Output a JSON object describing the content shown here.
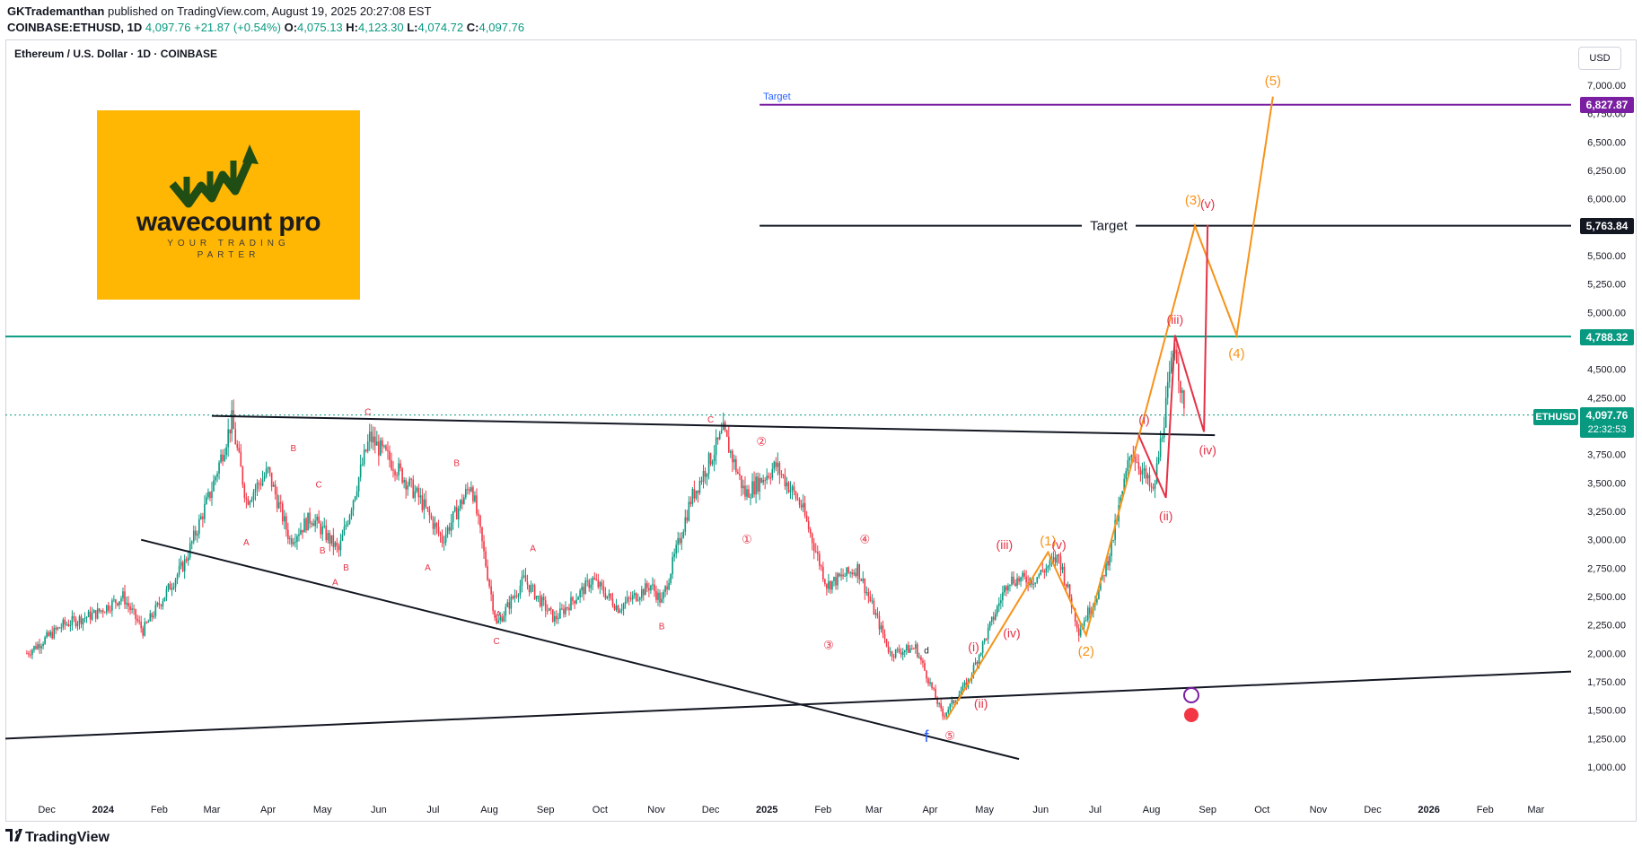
{
  "header": {
    "publisher": "GKTrademanthan",
    "published_text": "published on TradingView.com, August 19, 2025 20:27:08 EST",
    "symbol": "COINBASE:ETHUSD, 1D",
    "last": "4,097.76",
    "change": "+21.87 (+0.54%)",
    "open_label": "O:",
    "open": "4,075.13",
    "high_label": "H:",
    "high": "4,123.30",
    "low_label": "L:",
    "low": "4,074.72",
    "close_label": "C:",
    "close": "4,097.76"
  },
  "chart_title": "Ethereum / U.S. Dollar · 1D · COINBASE",
  "currency_button": "USD",
  "logo": {
    "brand": "wavecount pro",
    "tagline_1": "YOUR TRADING",
    "tagline_2": "PARTER",
    "color": "#ffb703"
  },
  "price_labels": {
    "target_upper": "6,827.87",
    "target_lower": "5,763.84",
    "resistance": "4,788.32",
    "symbol_tag": "ETHUSD",
    "last_price": "4,097.76",
    "countdown": "22:32:53"
  },
  "footer_brand": "TradingView",
  "colors": {
    "up": "#089981",
    "down": "#f23645",
    "wave_orange": "#f7931a",
    "wave_red": "#e53146",
    "target_purple": "#7b1fa2",
    "horizontal_teal": "#089981",
    "trendline": "#131722",
    "label_blue": "#2962ff"
  },
  "chart_data": {
    "type": "candlestick",
    "title": "Ethereum / U.S. Dollar · 1D · COINBASE",
    "y_axis": {
      "scale": "linear",
      "ticks": [
        "1,000.00",
        "1,250.00",
        "1,500.00",
        "1,750.00",
        "2,000.00",
        "2,250.00",
        "2,500.00",
        "2,750.00",
        "3,000.00",
        "3,250.00",
        "3,500.00",
        "3,750.00",
        "4,250.00",
        "4,500.00",
        "5,000.00",
        "5,250.00",
        "5,500.00",
        "6,000.00",
        "6,250.00",
        "6,500.00",
        "6,750.00",
        "7,000.00"
      ],
      "range": [
        850,
        7450
      ]
    },
    "x_axis": {
      "ticks": [
        "Dec",
        "2024",
        "Feb",
        "Mar",
        "Apr",
        "May",
        "Jun",
        "Jul",
        "Aug",
        "Sep",
        "Oct",
        "Nov",
        "Dec",
        "2025",
        "Feb",
        "Mar",
        "Apr",
        "May",
        "Jun",
        "Jul",
        "Aug",
        "Sep",
        "Oct",
        "Nov",
        "Dec",
        "2026",
        "Feb",
        "Mar"
      ]
    },
    "anchors": [
      [
        "2023-11-20",
        2000
      ],
      [
        "2023-12-10",
        2250
      ],
      [
        "2023-12-28",
        2350
      ],
      [
        "2024-01-12",
        2500
      ],
      [
        "2024-01-23",
        2200
      ],
      [
        "2024-02-15",
        2800
      ],
      [
        "2024-03-01",
        3450
      ],
      [
        "2024-03-12",
        4050
      ],
      [
        "2024-03-20",
        3350
      ],
      [
        "2024-04-01",
        3600
      ],
      [
        "2024-04-13",
        3000
      ],
      [
        "2024-04-25",
        3200
      ],
      [
        "2024-05-10",
        2900
      ],
      [
        "2024-05-27",
        3900
      ],
      [
        "2024-06-10",
        3650
      ],
      [
        "2024-06-24",
        3350
      ],
      [
        "2024-07-06",
        3000
      ],
      [
        "2024-07-22",
        3500
      ],
      [
        "2024-08-05",
        2250
      ],
      [
        "2024-08-20",
        2650
      ],
      [
        "2024-09-06",
        2300
      ],
      [
        "2024-09-27",
        2650
      ],
      [
        "2024-10-11",
        2400
      ],
      [
        "2024-10-29",
        2600
      ],
      [
        "2024-11-04",
        2450
      ],
      [
        "2024-11-20",
        3350
      ],
      [
        "2024-12-08",
        3950
      ],
      [
        "2024-12-20",
        3400
      ],
      [
        "2025-01-06",
        3650
      ],
      [
        "2025-01-20",
        3300
      ],
      [
        "2025-02-03",
        2600
      ],
      [
        "2025-02-20",
        2750
      ],
      [
        "2025-03-10",
        2000
      ],
      [
        "2025-03-24",
        2050
      ],
      [
        "2025-04-08",
        1450
      ],
      [
        "2025-04-22",
        1750
      ],
      [
        "2025-05-08",
        2400
      ],
      [
        "2025-05-14",
        2650
      ],
      [
        "2025-05-28",
        2650
      ],
      [
        "2025-06-11",
        2850
      ],
      [
        "2025-06-22",
        2200
      ],
      [
        "2025-07-03",
        2550
      ],
      [
        "2025-07-10",
        2950
      ],
      [
        "2025-07-21",
        3800
      ],
      [
        "2025-08-02",
        3400
      ],
      [
        "2025-08-14",
        4750
      ],
      [
        "2025-08-19",
        4100
      ]
    ],
    "horizontal_levels": [
      {
        "label": "Target",
        "value": 6827.87
      },
      {
        "label": "Target",
        "value": 5763.84
      },
      {
        "value": 4788.32
      },
      {
        "value": 4097.76
      }
    ],
    "wave_labels": {
      "orange": [
        "(1)",
        "(2)",
        "(3)",
        "(4)",
        "(5)"
      ],
      "red_minor": [
        "(i)",
        "(ii)",
        "(iii)",
        "(iv)",
        "(v)"
      ],
      "red_upper": [
        "(iii)",
        "(v)",
        "(i)",
        "(ii)",
        "(iv)"
      ],
      "circled": [
        "①",
        "②",
        "③",
        "④",
        "⑤"
      ],
      "abc": [
        "A",
        "B",
        "C",
        "A",
        "B",
        "C",
        "A",
        "B",
        "C",
        "A",
        "B",
        "C",
        "A",
        "B"
      ],
      "misc": [
        "f",
        "d"
      ]
    }
  }
}
